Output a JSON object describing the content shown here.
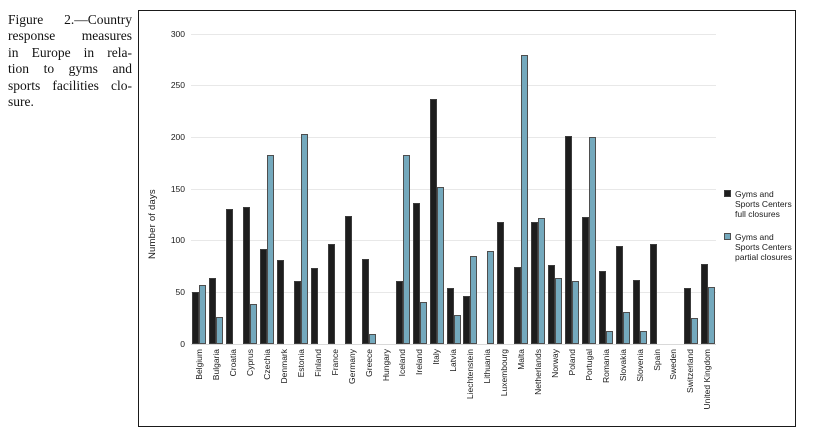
{
  "caption": {
    "text": "Figure 2.—Country response measures in Europe in relation to gyms and sports facilities closure.",
    "lines": [
      "Figure 2.—Country",
      "response measures",
      "in Europe in rela-",
      "tion to gyms and",
      "sports facilities clo-",
      "sure."
    ]
  },
  "chart_data": {
    "type": "bar",
    "title": "",
    "xlabel": "",
    "ylabel": "Number of days",
    "ylim": [
      0,
      300
    ],
    "yticks": [
      0,
      50,
      100,
      150,
      200,
      250,
      300
    ],
    "grid": true,
    "legend_position": "right-inside",
    "categories": [
      "Belgium",
      "Bulgaria",
      "Croatia",
      "Cyprus",
      "Czechia",
      "Denmark",
      "Estonia",
      "Finland",
      "France",
      "Germany",
      "Greece",
      "Hungary",
      "Iceland",
      "Ireland",
      "Italy",
      "Latvia",
      "Liechtenstein",
      "Lithuania",
      "Luxembourg",
      "Malta",
      "Netherlands",
      "Norway",
      "Poland",
      "Portugal",
      "Romania",
      "Slovakia",
      "Slovenia",
      "Spain",
      "Sweden",
      "Switzerland",
      "United Kingdom"
    ],
    "series": [
      {
        "name": "Gyms and Sports Centers full closures",
        "color": "#1d1d1d",
        "border": "#3c3c3c",
        "values": [
          50,
          64,
          131,
          133,
          92,
          81,
          61,
          74,
          97,
          124,
          82,
          0,
          61,
          136,
          237,
          54,
          46,
          0,
          118,
          75,
          118,
          76,
          201,
          123,
          71,
          95,
          62,
          97,
          0,
          54,
          77
        ]
      },
      {
        "name": "Gyms and Sports Centers partial closures",
        "color": "#74a9bd",
        "border": "#4e4e4e",
        "values": [
          57,
          26,
          0,
          39,
          183,
          0,
          203,
          0,
          0,
          0,
          10,
          0,
          183,
          41,
          152,
          28,
          85,
          90,
          0,
          280,
          122,
          64,
          61,
          200,
          13,
          31,
          13,
          0,
          0,
          25,
          55
        ]
      }
    ]
  },
  "colors": {
    "grid": "#e8e8e8",
    "baseline": "#d9d9d9",
    "frame": "#1a1a1a",
    "text": "#1a1a1a",
    "background": "#ffffff"
  }
}
